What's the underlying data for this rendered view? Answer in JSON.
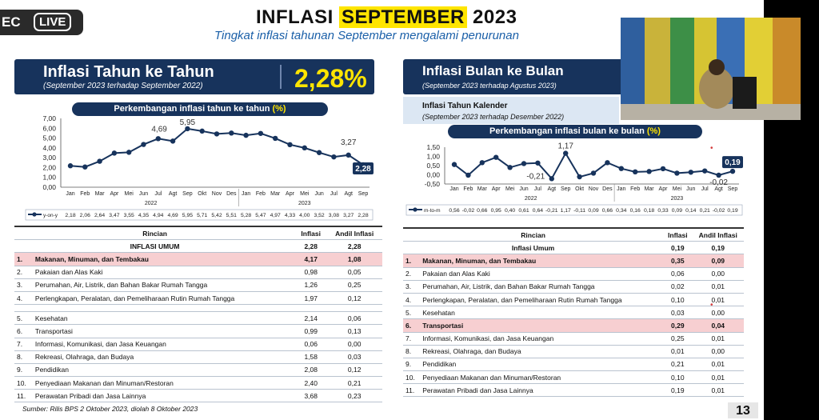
{
  "recording": {
    "ec": "EC",
    "live": "LIVE"
  },
  "header": {
    "title_prefix": "INFLASI",
    "title_highlight": "SEPTEMBER",
    "title_suffix": "2023",
    "subtitle": "Tingkat inflasi tahunan September mengalami penurunan"
  },
  "yoy": {
    "title": "Inflasi Tahun ke Tahun",
    "period": "(September 2023 terhadap September 2022)",
    "value": "2,28%"
  },
  "mtm": {
    "title": "Inflasi Bulan ke Bulan",
    "period": "(September 2023 terhadap Agustus 2023)"
  },
  "ytd": {
    "title": "Inflasi Tahun Kalender",
    "period": "(September 2023 terhadap Desember 2022)"
  },
  "yoy_chart_title": {
    "text": "Perkembangan inflasi tahun ke tahun ",
    "unit": "(%)"
  },
  "mtm_chart_title": {
    "text": "Perkembangan inflasi bulan ke bulan ",
    "unit": "(%)"
  },
  "chart_data": [
    {
      "type": "line",
      "title": "Perkembangan inflasi tahun ke tahun (%)",
      "categories": [
        "Jan",
        "Feb",
        "Mar",
        "Apr",
        "Mei",
        "Jun",
        "Jul",
        "Agt",
        "Sep",
        "Okt",
        "Nov",
        "Des",
        "Jan",
        "Feb",
        "Mar",
        "Apr",
        "Mei",
        "Jun",
        "Jul",
        "Agt",
        "Sep"
      ],
      "year_labels": [
        "2022",
        "2023"
      ],
      "series": [
        {
          "name": "y-on-y",
          "values": [
            2.18,
            2.06,
            2.64,
            3.47,
            3.55,
            4.35,
            4.94,
            4.69,
            5.95,
            5.71,
            5.42,
            5.51,
            5.28,
            5.47,
            4.97,
            4.33,
            4.0,
            3.52,
            3.08,
            3.27,
            2.28
          ],
          "table_labels": [
            "2,18",
            "2,06",
            "2,64",
            "3,47",
            "3,55",
            "4,35",
            "4,94",
            "4,69",
            "5,95",
            "5,71",
            "5,42",
            "5,51",
            "5,28",
            "5,47",
            "4,97",
            "4,33",
            "4,00",
            "3,52",
            "3,08",
            "3,27",
            "2,28"
          ]
        }
      ],
      "yticks": [
        "7,00",
        "6,00",
        "5,00",
        "4,00",
        "3,00",
        "2,00",
        "1,00",
        "0,00"
      ],
      "ylim": [
        0,
        7
      ],
      "annotations": [
        "5,95",
        "4,69",
        "3,27",
        "2,28"
      ]
    },
    {
      "type": "line",
      "title": "Perkembangan inflasi bulan ke bulan (%)",
      "categories": [
        "Jan",
        "Feb",
        "Mar",
        "Apr",
        "Mei",
        "Jun",
        "Jul",
        "Agt",
        "Sep",
        "Okt",
        "Nov",
        "Des",
        "Jan",
        "Feb",
        "Mar",
        "Apr",
        "Mei",
        "Jun",
        "Jul",
        "Agt",
        "Sep"
      ],
      "year_labels": [
        "2022",
        "2023"
      ],
      "series": [
        {
          "name": "m-to-m",
          "values": [
            0.56,
            -0.02,
            0.66,
            0.95,
            0.4,
            0.61,
            0.64,
            -0.21,
            1.17,
            -0.11,
            0.09,
            0.66,
            0.34,
            0.16,
            0.18,
            0.33,
            0.09,
            0.14,
            0.21,
            -0.02,
            0.19
          ],
          "table_labels": [
            "0,56",
            "-0,02",
            "0,66",
            "0,95",
            "0,40",
            "0,61",
            "0,64",
            "-0,21",
            "1,17",
            "-0,11",
            "0,09",
            "0,66",
            "0,34",
            "0,16",
            "0,18",
            "0,33",
            "0,09",
            "0,14",
            "0,21",
            "-0,02",
            "0,19"
          ]
        }
      ],
      "yticks": [
        "1,50",
        "1,00",
        "0,50",
        "0,00",
        "-0,50"
      ],
      "ylim": [
        -0.5,
        1.5
      ],
      "annotations": [
        "1,17",
        "-0,21",
        "-0,02",
        "0,19"
      ]
    }
  ],
  "yoy_table": {
    "headers": [
      "Rincian",
      "Inflasi",
      "Andil Inflasi"
    ],
    "total": [
      "INFLASI UMUM",
      "2,28",
      "2,28"
    ],
    "rows": [
      [
        "1.",
        "Makanan, Minuman, dan Tembakau",
        "4,17",
        "1,08"
      ],
      [
        "2.",
        "Pakaian dan Alas Kaki",
        "0,98",
        "0,05"
      ],
      [
        "3.",
        "Perumahan, Air, Listrik, dan Bahan Bakar Rumah Tangga",
        "1,26",
        "0,25"
      ],
      [
        "4.",
        "Perlengkapan, Peralatan, dan Pemeliharaan Rutin Rumah Tangga",
        "1,97",
        "0,12"
      ],
      [
        "5.",
        "Kesehatan",
        "2,14",
        "0,06"
      ],
      [
        "6.",
        "Transportasi",
        "0,99",
        "0,13"
      ],
      [
        "7.",
        "Informasi, Komunikasi, dan Jasa Keuangan",
        "0,06",
        "0,00"
      ],
      [
        "8.",
        "Rekreasi, Olahraga, dan Budaya",
        "1,58",
        "0,03"
      ],
      [
        "9.",
        "Pendidikan",
        "2,08",
        "0,12"
      ],
      [
        "10.",
        "Penyediaan Makanan dan Minuman/Restoran",
        "2,40",
        "0,21"
      ],
      [
        "11.",
        "Perawatan Pribadi dan Jasa Lainnya",
        "3,68",
        "0,23"
      ]
    ]
  },
  "mtm_table": {
    "headers": [
      "Rincian",
      "Inflasi",
      "Andil Inflasi"
    ],
    "total": [
      "Inflasi Umum",
      "0,19",
      "0,19"
    ],
    "rows": [
      [
        "1.",
        "Makanan, Minuman, dan Tembakau",
        "0,35",
        "0,09"
      ],
      [
        "2.",
        "Pakaian dan Alas Kaki",
        "0,06",
        "0,00"
      ],
      [
        "3.",
        "Perumahan, Air, Listrik, dan Bahan Bakar Rumah Tangga",
        "0,02",
        "0,01"
      ],
      [
        "4.",
        "Perlengkapan, Peralatan, dan Pemeliharaan Rutin Rumah Tangga",
        "0,10",
        "0,01"
      ],
      [
        "5.",
        "Kesehatan",
        "0,03",
        "0,00"
      ],
      [
        "6.",
        "Transportasi",
        "0,29",
        "0,04"
      ],
      [
        "7.",
        "Informasi, Komunikasi, dan Jasa Keuangan",
        "0,25",
        "0,01"
      ],
      [
        "8.",
        "Rekreasi, Olahraga, dan Budaya",
        "0,01",
        "0,00"
      ],
      [
        "9.",
        "Pendidikan",
        "0,21",
        "0,01"
      ],
      [
        "10.",
        "Penyediaan Makanan dan Minuman/Restoran",
        "0,10",
        "0,01"
      ],
      [
        "11.",
        "Perawatan Pribadi dan Jasa Lainnya",
        "0,19",
        "0,01"
      ]
    ]
  },
  "source": "Sumber: Rilis BPS 2 Oktober 2023, diolah 8 Oktober 2023",
  "page_number": "13",
  "colors": {
    "navy": "#17335c",
    "yellow": "#ffe500",
    "highlight_row": "#f7cfd1",
    "line": "#17335c"
  }
}
